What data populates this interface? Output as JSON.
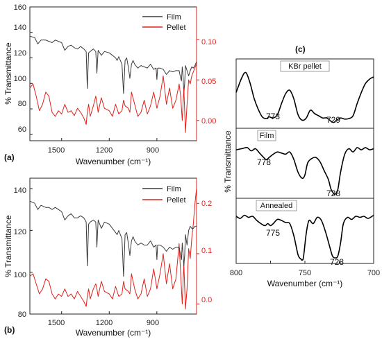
{
  "colors": {
    "film": "#3a3a3a",
    "pellet": "#e0201b",
    "axis": "#222222"
  },
  "chart_data": [
    {
      "type": "line",
      "panel_label": "(a)",
      "xlabel": "Wavenumber (cm⁻¹)",
      "ylabel": "% Transmittance",
      "xlim": [
        1700,
        650
      ],
      "x_reversed": true,
      "xticks": [
        "1500",
        "1200",
        "900"
      ],
      "ylim_left": [
        55,
        160
      ],
      "yticks_left": [
        "60",
        "80",
        "100",
        "120",
        "140",
        "160"
      ],
      "ylim_right": [
        -0.025,
        0.14
      ],
      "yticks_right": [
        "0.00",
        "0.05",
        "0.10"
      ],
      "legend_position": "top-right",
      "series": [
        {
          "name": "Film",
          "axis": "left",
          "x": [
            1700,
            1670,
            1650,
            1630,
            1600,
            1580,
            1560,
            1540,
            1520,
            1500,
            1480,
            1460,
            1440,
            1420,
            1400,
            1380,
            1360,
            1345,
            1338,
            1330,
            1320,
            1300,
            1285,
            1278,
            1270,
            1250,
            1230,
            1200,
            1180,
            1160,
            1150,
            1140,
            1120,
            1110,
            1100,
            1090,
            1080,
            1070,
            1060,
            1050,
            1040,
            1020,
            1000,
            980,
            960,
            940,
            920,
            905,
            900,
            895,
            880,
            860,
            840,
            820,
            800,
            780,
            760,
            750,
            745,
            740,
            735,
            730,
            725,
            720,
            710,
            700,
            690,
            680,
            670,
            660,
            650
          ],
          "y": [
            137,
            136,
            131,
            134,
            134,
            133,
            132,
            134,
            133,
            132,
            126,
            129,
            130,
            128,
            127,
            129,
            127,
            125,
            96,
            124,
            125,
            127,
            125,
            108,
            126,
            122,
            125,
            124,
            122,
            120,
            118,
            121,
            115,
            92,
            118,
            120,
            113,
            104,
            115,
            118,
            115,
            112,
            114,
            113,
            112,
            115,
            111,
            112,
            103,
            112,
            112,
            111,
            107,
            110,
            109,
            110,
            110,
            104,
            102,
            113,
            106,
            92,
            100,
            114,
            110,
            106,
            110,
            113,
            112,
            114,
            117
          ]
        },
        {
          "name": "Pellet",
          "axis": "right",
          "x": [
            1700,
            1680,
            1660,
            1640,
            1620,
            1600,
            1580,
            1560,
            1540,
            1520,
            1500,
            1480,
            1460,
            1440,
            1420,
            1400,
            1380,
            1360,
            1345,
            1338,
            1330,
            1320,
            1300,
            1285,
            1278,
            1270,
            1250,
            1230,
            1200,
            1180,
            1160,
            1140,
            1120,
            1110,
            1100,
            1080,
            1070,
            1060,
            1040,
            1020,
            1000,
            980,
            960,
            940,
            920,
            900,
            880,
            860,
            840,
            820,
            800,
            780,
            760,
            750,
            740,
            730,
            720,
            710,
            700,
            690,
            680,
            670,
            660,
            650
          ],
          "y": [
            0.04,
            0.045,
            0.03,
            0.012,
            0.02,
            0.035,
            0.03,
            0.01,
            0.005,
            0.012,
            0.008,
            0.02,
            0.01,
            0.012,
            0.006,
            0.015,
            0.01,
            0.003,
            -0.005,
            0.01,
            0.02,
            0.005,
            0.018,
            0.03,
            0.022,
            0.01,
            0.028,
            0.015,
            0.012,
            0.005,
            0.02,
            0.008,
            0.012,
            0.025,
            0.018,
            0.015,
            0.01,
            0.035,
            0.02,
            0.005,
            0.01,
            0.025,
            0.008,
            0.018,
            0.035,
            0.015,
            0.03,
            0.055,
            0.02,
            0.04,
            0.015,
            0.025,
            0.045,
            0.03,
            0.0,
            0.04,
            -0.015,
            0.02,
            0.05,
            0.045,
            0.055,
            0.06,
            0.065,
            0.07
          ]
        }
      ]
    },
    {
      "type": "line",
      "panel_label": "(b)",
      "xlabel": "Wavenumber (cm⁻¹)",
      "ylabel": "% Transmittance",
      "xlim": [
        1700,
        650
      ],
      "x_reversed": true,
      "xticks": [
        "1500",
        "1200",
        "900"
      ],
      "ylim_left": [
        80,
        145
      ],
      "yticks_left": [
        "80",
        "100",
        "120",
        "140"
      ],
      "ylim_right": [
        -0.02,
        0.25
      ],
      "yticks_right": [
        "0.0",
        "0.1",
        "0.2"
      ],
      "legend_position": "top-right",
      "series": [
        {
          "name": "Film",
          "axis": "left",
          "x": [
            1700,
            1670,
            1650,
            1630,
            1600,
            1580,
            1560,
            1540,
            1520,
            1500,
            1480,
            1460,
            1440,
            1420,
            1400,
            1380,
            1360,
            1345,
            1338,
            1330,
            1320,
            1300,
            1285,
            1278,
            1270,
            1250,
            1230,
            1200,
            1180,
            1160,
            1150,
            1140,
            1120,
            1110,
            1100,
            1090,
            1080,
            1070,
            1060,
            1050,
            1040,
            1020,
            1000,
            980,
            960,
            940,
            920,
            905,
            900,
            895,
            880,
            860,
            840,
            820,
            800,
            780,
            760,
            750,
            745,
            740,
            735,
            730,
            725,
            720,
            710,
            700,
            690,
            680,
            670,
            660,
            650
          ],
          "y": [
            134,
            133,
            130,
            132,
            131,
            131,
            130,
            131,
            130,
            129,
            125,
            127,
            128,
            126,
            126,
            127,
            126,
            124,
            103,
            123,
            124,
            125,
            124,
            112,
            125,
            121,
            124,
            123,
            121,
            119,
            118,
            120,
            116,
            98,
            118,
            119,
            114,
            108,
            115,
            117,
            115,
            113,
            114,
            113,
            113,
            115,
            112,
            113,
            106,
            113,
            113,
            112,
            110,
            112,
            111,
            112,
            112,
            108,
            106,
            114,
            109,
            103,
            108,
            118,
            113,
            120,
            122,
            121,
            121,
            122,
            122
          ]
        },
        {
          "name": "Pellet",
          "axis": "right",
          "x": [
            1700,
            1680,
            1660,
            1640,
            1620,
            1600,
            1580,
            1560,
            1540,
            1520,
            1500,
            1480,
            1460,
            1440,
            1420,
            1400,
            1380,
            1360,
            1345,
            1338,
            1330,
            1320,
            1300,
            1285,
            1278,
            1270,
            1250,
            1230,
            1200,
            1180,
            1160,
            1140,
            1120,
            1110,
            1100,
            1080,
            1070,
            1060,
            1040,
            1020,
            1000,
            980,
            960,
            940,
            920,
            900,
            880,
            860,
            840,
            820,
            800,
            780,
            760,
            750,
            740,
            730,
            720,
            710,
            700,
            690,
            680,
            670,
            660,
            650
          ],
          "y": [
            0.055,
            0.06,
            0.04,
            0.02,
            0.03,
            0.05,
            0.045,
            0.02,
            0.01,
            0.02,
            0.015,
            0.03,
            0.015,
            0.02,
            0.01,
            0.025,
            0.015,
            0.005,
            -0.005,
            0.015,
            0.03,
            0.01,
            0.03,
            0.04,
            0.03,
            0.015,
            0.045,
            0.025,
            0.02,
            0.01,
            0.035,
            0.015,
            0.02,
            0.045,
            0.03,
            0.025,
            0.02,
            0.06,
            0.03,
            0.01,
            0.02,
            0.05,
            0.015,
            0.03,
            0.07,
            0.03,
            0.06,
            0.1,
            0.04,
            0.08,
            0.03,
            0.05,
            0.12,
            0.06,
            0.0,
            0.08,
            -0.01,
            0.03,
            0.11,
            0.09,
            0.13,
            0.16,
            0.2,
            0.23
          ]
        }
      ]
    },
    {
      "type": "line",
      "panel_label": "(c)",
      "xlabel": "Wavenumber (cm⁻¹)",
      "ylabel": "% Transmittance",
      "xlim": [
        800,
        700
      ],
      "x_reversed": true,
      "xticks": [
        "800",
        "750",
        "700"
      ],
      "subpanels": [
        {
          "label": "KBr pellet",
          "annotations": [
            {
              "text": "773",
              "x": 773
            },
            {
              "text": "729",
              "x": 729
            }
          ],
          "x": [
            800,
            796,
            793,
            790,
            787,
            784,
            781,
            778,
            776,
            773,
            770,
            767,
            764,
            761,
            758,
            755,
            752,
            749,
            746,
            743,
            740,
            737,
            734,
            731,
            729,
            727,
            724,
            721,
            718,
            715,
            712,
            709,
            706,
            703,
            700
          ],
          "y": [
            0.62,
            0.88,
            0.98,
            0.8,
            0.52,
            0.32,
            0.18,
            0.15,
            0.18,
            0.16,
            0.22,
            0.42,
            0.6,
            0.66,
            0.5,
            0.22,
            0.12,
            0.16,
            0.3,
            0.24,
            0.2,
            0.16,
            0.16,
            0.1,
            0.08,
            0.12,
            0.16,
            0.14,
            0.15,
            0.2,
            0.42,
            0.62,
            0.78,
            0.86,
            0.9
          ]
        },
        {
          "label": "Film",
          "annotations": [
            {
              "text": "778",
              "x": 778
            },
            {
              "text": "728",
              "x": 728
            }
          ],
          "x": [
            800,
            796,
            792,
            789,
            786,
            783,
            780,
            778,
            776,
            773,
            770,
            767,
            764,
            761,
            758,
            755,
            752,
            750,
            748,
            745,
            742,
            739,
            736,
            733,
            731,
            729,
            728,
            726,
            724,
            721,
            718,
            715,
            712,
            709,
            706,
            703,
            700
          ],
          "y": [
            0.86,
            0.88,
            0.9,
            0.84,
            0.88,
            0.8,
            0.72,
            0.68,
            0.72,
            0.78,
            0.82,
            0.8,
            0.78,
            0.82,
            0.68,
            0.45,
            0.34,
            0.4,
            0.62,
            0.7,
            0.72,
            0.64,
            0.48,
            0.32,
            0.14,
            0.06,
            0.05,
            0.14,
            0.46,
            0.78,
            0.88,
            0.82,
            0.9,
            0.86,
            0.9,
            0.86,
            0.88
          ]
        },
        {
          "label": "Annealed",
          "annotations": [
            {
              "text": "775",
              "x": 775
            },
            {
              "text": "728",
              "x": 728
            }
          ],
          "x": [
            800,
            797,
            794,
            791,
            788,
            785,
            782,
            779,
            777,
            775,
            773,
            770,
            767,
            764,
            761,
            758,
            755,
            753,
            752,
            751,
            749,
            747,
            744,
            741,
            738,
            735,
            732,
            730,
            728,
            726,
            724,
            722,
            719,
            716,
            713,
            710,
            707,
            704,
            700
          ],
          "y": [
            0.88,
            0.84,
            0.9,
            0.86,
            0.88,
            0.8,
            0.74,
            0.7,
            0.74,
            0.7,
            0.74,
            0.82,
            0.8,
            0.76,
            0.74,
            0.5,
            0.14,
            0.06,
            0.04,
            0.1,
            0.56,
            0.8,
            0.74,
            0.86,
            0.8,
            0.58,
            0.3,
            0.12,
            0.08,
            0.12,
            0.38,
            0.74,
            0.86,
            0.82,
            0.88,
            0.86,
            0.88,
            0.84,
            0.9
          ]
        }
      ]
    }
  ]
}
